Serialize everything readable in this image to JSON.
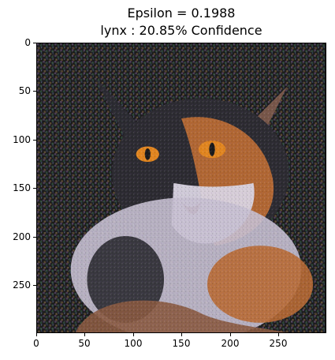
{
  "chart_data": {
    "type": "image",
    "title_lines": [
      "Epsilon = 0.1988",
      "lynx : 20.85% Confidence"
    ],
    "epsilon": 0.1988,
    "predicted_label": "lynx",
    "confidence_percent": 20.85,
    "image_subject": "adversarially perturbed photo of a calico cat with orange eyes",
    "x_ticks": [
      0,
      50,
      100,
      150,
      200,
      250
    ],
    "y_ticks": [
      0,
      50,
      100,
      150,
      200,
      250
    ],
    "xlim": [
      0,
      299
    ],
    "ylim": [
      299,
      0
    ],
    "image_extent": [
      300,
      300
    ],
    "colors": {
      "background": "#111111",
      "fur_orange": "#b86a34",
      "fur_white": "#d9d4e2",
      "eye": "#e2861f"
    }
  }
}
